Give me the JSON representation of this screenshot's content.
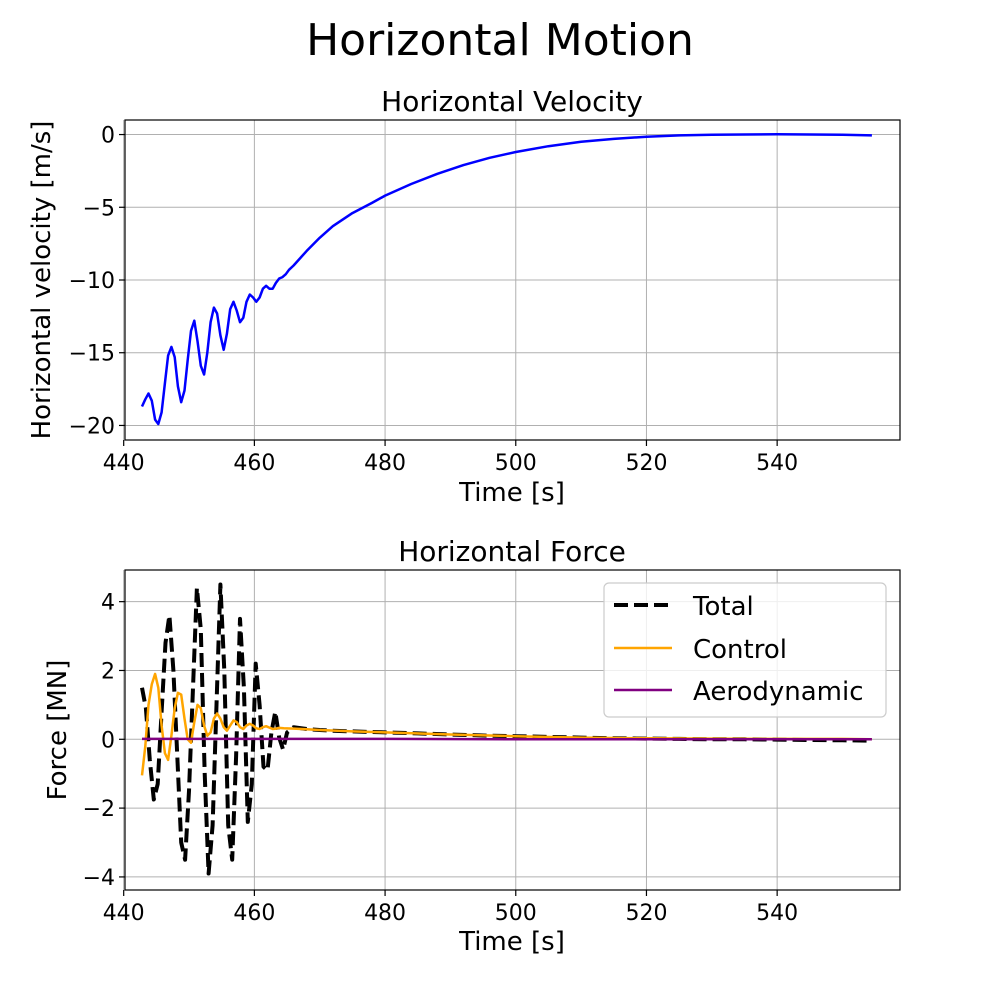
{
  "figure": {
    "suptitle": "Horizontal Motion"
  },
  "chart_data": [
    {
      "type": "line",
      "title": "Horizontal Velocity",
      "xlabel": "Time [s]",
      "ylabel": "Horizontal velocity [m/s]",
      "xlim": [
        440.2,
        558.8
      ],
      "ylim": [
        -21.0,
        1.0
      ],
      "xticks": [
        440,
        460,
        480,
        500,
        520,
        540
      ],
      "yticks": [
        0,
        -5,
        -10,
        -15,
        -20
      ],
      "xtick_labels": [
        "440",
        "460",
        "480",
        "500",
        "520",
        "540"
      ],
      "ytick_labels": [
        "0",
        "−5",
        "−10",
        "−15",
        "−20"
      ],
      "grid": true,
      "series": [
        {
          "color": "#0000ff",
          "x": [
            442.8,
            443.3,
            443.8,
            444.3,
            444.8,
            445.3,
            445.8,
            446.3,
            446.8,
            447.3,
            447.8,
            448.3,
            448.8,
            449.3,
            449.8,
            450.3,
            450.8,
            451.3,
            451.8,
            452.3,
            452.8,
            453.3,
            453.8,
            454.3,
            454.8,
            455.3,
            455.8,
            456.3,
            456.8,
            457.3,
            457.8,
            458.3,
            458.8,
            459.3,
            459.8,
            460.3,
            460.8,
            461.3,
            461.8,
            462.3,
            462.8,
            463.3,
            463.8,
            464.3,
            464.8,
            465.3,
            466,
            468,
            470,
            472,
            475,
            478,
            480,
            484,
            488,
            492,
            496,
            500,
            505,
            510,
            515,
            520,
            525,
            530,
            535,
            540,
            545,
            550,
            554.5
          ],
          "y": [
            -18.7,
            -18.2,
            -17.8,
            -18.3,
            -19.6,
            -19.9,
            -19.1,
            -17.1,
            -15.2,
            -14.6,
            -15.3,
            -17.3,
            -18.4,
            -17.6,
            -15.5,
            -13.5,
            -12.8,
            -14.2,
            -15.9,
            -16.5,
            -15.0,
            -12.9,
            -11.9,
            -12.3,
            -13.8,
            -14.8,
            -13.7,
            -12.0,
            -11.5,
            -12.1,
            -12.9,
            -12.6,
            -11.5,
            -11.0,
            -11.2,
            -11.5,
            -11.2,
            -10.6,
            -10.4,
            -10.6,
            -10.6,
            -10.2,
            -9.9,
            -9.8,
            -9.6,
            -9.3,
            -9.0,
            -8.0,
            -7.1,
            -6.3,
            -5.4,
            -4.7,
            -4.2,
            -3.4,
            -2.7,
            -2.1,
            -1.6,
            -1.2,
            -0.8,
            -0.5,
            -0.3,
            -0.15,
            -0.06,
            -0.02,
            0.0,
            0.02,
            0.0,
            -0.02,
            -0.06
          ]
        }
      ]
    },
    {
      "type": "line",
      "title": "Horizontal Force",
      "xlabel": "Time [s]",
      "ylabel": "Force [MN]",
      "xlim": [
        440.2,
        558.8
      ],
      "ylim": [
        -4.38,
        4.92
      ],
      "xticks": [
        440,
        460,
        480,
        500,
        520,
        540
      ],
      "yticks": [
        4,
        2,
        0,
        -2,
        -4
      ],
      "xtick_labels": [
        "440",
        "460",
        "480",
        "500",
        "520",
        "540"
      ],
      "ytick_labels": [
        "4",
        "2",
        "0",
        "−2",
        "−4"
      ],
      "grid": true,
      "legend_position": "top-right",
      "series": [
        {
          "name": "Total",
          "color": "#000000",
          "style": "dashed",
          "x": [
            442.8,
            443.4,
            444,
            444.6,
            445.2,
            445.8,
            446.4,
            447,
            447.6,
            448.2,
            448.8,
            449.4,
            450,
            450.6,
            451.2,
            451.8,
            452.4,
            453,
            453.6,
            454.2,
            454.8,
            455.4,
            456,
            456.6,
            457.2,
            457.8,
            458.4,
            459,
            459.6,
            460.2,
            460.8,
            461.4,
            462,
            462.6,
            463.2,
            463.8,
            464.4,
            465,
            466,
            468,
            470,
            472,
            475,
            480,
            485,
            490,
            495,
            500,
            505,
            510,
            515,
            520,
            525,
            530,
            535,
            540,
            545,
            550,
            554.5
          ],
          "y": [
            1.5,
            0.9,
            -0.6,
            -1.75,
            -1.3,
            0.8,
            2.8,
            3.6,
            2.0,
            -0.5,
            -3.0,
            -3.5,
            -1.5,
            1.5,
            4.4,
            3.2,
            -1.0,
            -3.9,
            -2.5,
            1.0,
            4.5,
            2.0,
            -2.5,
            -3.5,
            -0.5,
            3.5,
            1.5,
            -2.4,
            -1.3,
            2.2,
            1.0,
            -0.8,
            -0.9,
            0.2,
            0.8,
            0.05,
            -0.3,
            0.2,
            0.35,
            0.3,
            0.27,
            0.25,
            0.23,
            0.2,
            0.17,
            0.14,
            0.11,
            0.09,
            0.07,
            0.05,
            0.03,
            0.02,
            0.01,
            0.0,
            0.0,
            -0.01,
            -0.02,
            -0.03,
            -0.04
          ]
        },
        {
          "name": "Control",
          "color": "#ffa500",
          "style": "solid",
          "x": [
            442.8,
            443.3,
            443.8,
            444.3,
            444.8,
            445.3,
            445.8,
            446.3,
            446.8,
            447.3,
            447.8,
            448.3,
            448.8,
            449.3,
            449.8,
            450.3,
            450.8,
            451.3,
            451.8,
            452.3,
            452.8,
            453.3,
            453.8,
            454.3,
            454.8,
            455.3,
            455.8,
            456.3,
            456.8,
            457.3,
            457.8,
            458.3,
            458.8,
            459.3,
            459.8,
            460.3,
            460.8,
            461.3,
            461.8,
            462.3,
            462.8,
            463.3,
            463.8,
            464.5,
            466,
            468,
            470,
            475,
            480,
            490,
            500,
            510,
            520,
            530,
            540,
            550,
            554.5
          ],
          "y": [
            -1.05,
            -0.2,
            1.0,
            1.6,
            1.9,
            1.5,
            0.4,
            -0.4,
            -0.6,
            0.1,
            0.9,
            1.35,
            1.3,
            0.6,
            0.0,
            -0.1,
            0.5,
            1.0,
            0.9,
            0.4,
            0.1,
            0.2,
            0.6,
            0.75,
            0.6,
            0.35,
            0.25,
            0.4,
            0.55,
            0.5,
            0.35,
            0.3,
            0.4,
            0.45,
            0.4,
            0.32,
            0.3,
            0.35,
            0.38,
            0.34,
            0.3,
            0.31,
            0.33,
            0.32,
            0.31,
            0.29,
            0.27,
            0.23,
            0.2,
            0.14,
            0.09,
            0.05,
            0.03,
            0.02,
            0.01,
            0.01,
            0.0
          ]
        },
        {
          "name": "Aerodynamic",
          "color": "#800080",
          "style": "solid",
          "x": [
            442.8,
            450,
            460,
            470,
            480,
            500,
            520,
            540,
            554.5
          ],
          "y": [
            0.01,
            0.01,
            0.01,
            0.01,
            0.01,
            0.0,
            0.0,
            0.0,
            0.0
          ]
        }
      ]
    }
  ]
}
